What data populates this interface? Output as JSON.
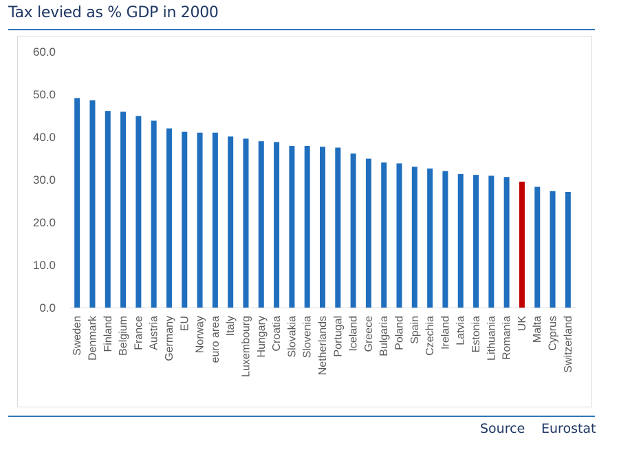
{
  "title": "Tax levied as % GDP in 2000",
  "footer": {
    "source_label": "Source",
    "source_value": "Eurostat"
  },
  "colors": {
    "bar": "#1f6fbe",
    "highlight": "#c00000",
    "axis_text": "#595959",
    "rule": "#2e75b6",
    "title": "#1f3864"
  },
  "chart_data": {
    "type": "bar",
    "title": "Tax levied as % GDP in 2000",
    "xlabel": "",
    "ylabel": "",
    "ylim": [
      0,
      60
    ],
    "yticks": [
      "0.0",
      "10.0",
      "20.0",
      "30.0",
      "40.0",
      "50.0",
      "60.0"
    ],
    "grid": false,
    "legend": "none",
    "highlight": "UK",
    "categories": [
      "Sweden",
      "Denmark",
      "Finland",
      "Belgium",
      "France",
      "Austria",
      "Germany",
      "EU",
      "Norway",
      "euro area",
      "Italy",
      "Luxembourg",
      "Hungary",
      "Croatia",
      "Slovakia",
      "Slovenia",
      "Netherlands",
      "Portugal",
      "Iceland",
      "Greece",
      "Bulgaria",
      "Poland",
      "Spain",
      "Czechia",
      "Ireland",
      "Latvia",
      "Estonia",
      "Lithuania",
      "Romania",
      "UK",
      "Malta",
      "Cyprus",
      "Switzerland"
    ],
    "values": [
      49.1,
      48.6,
      46.1,
      45.9,
      44.9,
      43.8,
      42.0,
      41.2,
      41.0,
      41.0,
      40.1,
      39.6,
      39.0,
      38.8,
      37.9,
      37.9,
      37.7,
      37.5,
      36.1,
      34.9,
      34.0,
      33.8,
      33.0,
      32.6,
      32.0,
      31.3,
      31.1,
      30.9,
      30.6,
      29.5,
      28.3,
      27.3,
      27.1
    ]
  }
}
